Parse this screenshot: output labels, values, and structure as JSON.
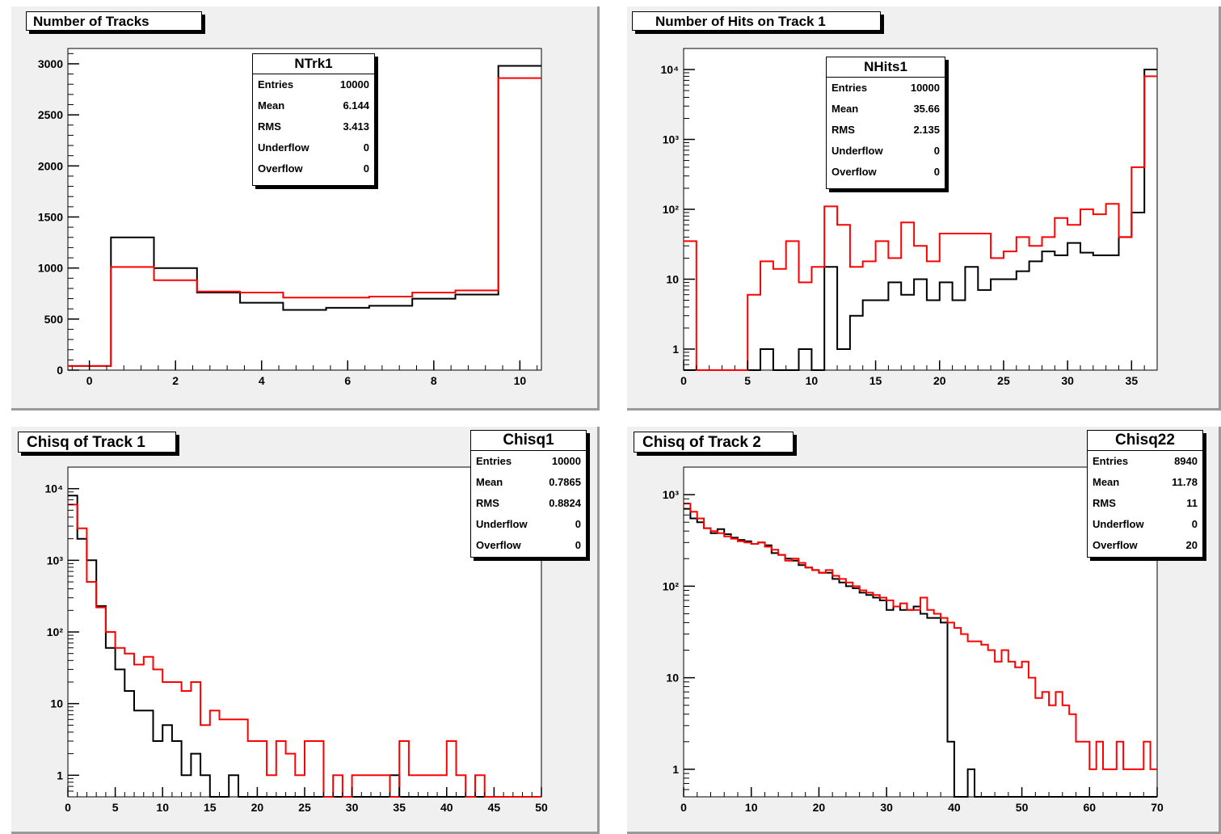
{
  "stat_labels": {
    "entries": "Entries",
    "mean": "Mean",
    "rms": "RMS",
    "underflow": "Underflow",
    "overflow": "Overflow"
  },
  "colors": {
    "reco": "#000000",
    "truth": "#ff0000",
    "pad": "#f0f0f0",
    "frame": "#ffffff"
  },
  "chart_data": [
    {
      "type": "histogram",
      "title": "Number of Tracks",
      "stats": {
        "name": "NTrk1",
        "entries": "10000",
        "mean": "6.144",
        "rms": "3.413",
        "underflow": "0",
        "overflow": "0"
      },
      "log_y": false,
      "xlim": [
        -0.5,
        10.5
      ],
      "ylim": [
        0,
        3150
      ],
      "x_ticks": [
        0,
        2,
        4,
        6,
        8,
        10
      ],
      "y_ticks": [
        0,
        500,
        1000,
        1500,
        2000,
        2500,
        3000
      ],
      "bin_edges": [
        -0.5,
        0.5,
        1.5,
        2.5,
        3.5,
        4.5,
        5.5,
        6.5,
        7.5,
        8.5,
        9.5,
        10.5
      ],
      "series": [
        {
          "color_key": "reco",
          "values": [
            40,
            1300,
            1000,
            760,
            660,
            590,
            610,
            630,
            700,
            740,
            2980
          ]
        },
        {
          "color_key": "truth",
          "values": [
            40,
            1010,
            880,
            770,
            760,
            710,
            710,
            720,
            760,
            780,
            2860
          ]
        }
      ]
    },
    {
      "type": "histogram",
      "title": "Number of Hits on Track 1",
      "stats": {
        "name": "NHits1",
        "entries": "10000",
        "mean": "35.66",
        "rms": "2.135",
        "underflow": "0",
        "overflow": "0"
      },
      "log_y": true,
      "xlim": [
        0,
        37
      ],
      "ylim": [
        0.5,
        20000
      ],
      "x_ticks": [
        0,
        5,
        10,
        15,
        20,
        25,
        30,
        35
      ],
      "y_ticks": [
        1,
        10,
        100,
        1000,
        10000
      ],
      "y_tick_labels": [
        "1",
        "10",
        "10²",
        "10³",
        "10⁴"
      ],
      "bin_start": 0,
      "bin_width": 1,
      "series": [
        {
          "color_key": "reco",
          "values": [
            0,
            0,
            0,
            0,
            0,
            0,
            1,
            0,
            0,
            1,
            0,
            15,
            1,
            3,
            5,
            5,
            9,
            6,
            10,
            5,
            9,
            5,
            15,
            7,
            10,
            10,
            13,
            18,
            25,
            22,
            33,
            24,
            22,
            22,
            40,
            90,
            10000
          ]
        },
        {
          "color_key": "truth",
          "values": [
            35,
            0,
            0,
            0,
            0,
            6,
            18,
            14,
            35,
            9,
            15,
            110,
            60,
            15,
            18,
            35,
            20,
            65,
            30,
            18,
            45,
            45,
            45,
            45,
            20,
            25,
            40,
            30,
            40,
            75,
            60,
            100,
            85,
            120,
            40,
            400,
            8000
          ]
        }
      ]
    },
    {
      "type": "histogram",
      "title": "Chisq of Track 1",
      "stats": {
        "name": "Chisq1",
        "entries": "10000",
        "mean": "0.7865",
        "rms": "0.8824",
        "underflow": "0",
        "overflow": "0"
      },
      "log_y": true,
      "xlim": [
        0,
        50
      ],
      "ylim": [
        0.5,
        20000
      ],
      "x_ticks": [
        0,
        5,
        10,
        15,
        20,
        25,
        30,
        35,
        40,
        45,
        50
      ],
      "y_ticks": [
        1,
        10,
        100,
        1000,
        10000
      ],
      "y_tick_labels": [
        "1",
        "10",
        "10²",
        "10³",
        "10⁴"
      ],
      "bin_start": 0,
      "bin_width": 1,
      "series": [
        {
          "color_key": "reco",
          "values": [
            8000,
            2000,
            1000,
            230,
            60,
            30,
            15,
            8,
            8,
            3,
            5,
            3,
            1,
            2,
            1,
            0,
            0,
            1,
            0,
            0,
            0,
            0,
            0,
            0,
            0,
            0,
            0,
            0,
            0,
            0,
            0,
            0,
            0,
            0,
            1,
            0,
            0,
            0,
            0,
            0,
            0,
            0,
            0,
            0,
            0,
            0,
            0,
            0,
            0,
            0
          ]
        },
        {
          "color_key": "truth",
          "values": [
            6000,
            2800,
            500,
            220,
            100,
            60,
            50,
            35,
            45,
            30,
            20,
            20,
            15,
            20,
            5,
            8,
            6,
            6,
            6,
            3,
            3,
            1,
            3,
            2,
            1,
            3,
            3,
            0,
            1,
            0,
            1,
            1,
            1,
            1,
            0,
            3,
            1,
            1,
            1,
            1,
            3,
            1,
            0,
            1,
            0,
            0,
            0,
            0,
            0,
            0
          ]
        }
      ]
    },
    {
      "type": "histogram",
      "title": "Chisq of Track 2",
      "stats": {
        "name": "Chisq22",
        "entries": "8940",
        "mean": "11.78",
        "rms": "11",
        "underflow": "0",
        "overflow": "20"
      },
      "log_y": true,
      "xlim": [
        0,
        70
      ],
      "ylim": [
        0.5,
        2000
      ],
      "x_ticks": [
        0,
        10,
        20,
        30,
        40,
        50,
        60,
        70
      ],
      "y_ticks": [
        1,
        10,
        100,
        1000
      ],
      "y_tick_labels": [
        "1",
        "10",
        "10²",
        "10³"
      ],
      "bin_start": 0,
      "bin_width": 1,
      "series": [
        {
          "color_key": "reco",
          "values": [
            700,
            550,
            500,
            430,
            380,
            420,
            370,
            340,
            320,
            310,
            290,
            300,
            280,
            230,
            220,
            200,
            190,
            170,
            160,
            150,
            140,
            140,
            120,
            110,
            100,
            95,
            85,
            80,
            75,
            70,
            55,
            60,
            55,
            55,
            60,
            50,
            45,
            45,
            40,
            2,
            0,
            0,
            1,
            0,
            0,
            0,
            0,
            0,
            0,
            0,
            0,
            0,
            0,
            0,
            0,
            0,
            0,
            0,
            0,
            0,
            0,
            0,
            0,
            0,
            0,
            0,
            0,
            0,
            0,
            0
          ]
        },
        {
          "color_key": "truth",
          "values": [
            800,
            650,
            550,
            430,
            400,
            380,
            350,
            330,
            310,
            300,
            290,
            300,
            270,
            250,
            220,
            190,
            200,
            180,
            160,
            150,
            140,
            150,
            130,
            120,
            110,
            100,
            90,
            85,
            80,
            75,
            70,
            60,
            65,
            55,
            55,
            75,
            55,
            50,
            45,
            40,
            35,
            30,
            25,
            25,
            23,
            20,
            15,
            20,
            15,
            13,
            15,
            10,
            6,
            7,
            5,
            7,
            5,
            4,
            2,
            2,
            1,
            2,
            1,
            1,
            2,
            1,
            1,
            1,
            2,
            1
          ]
        }
      ]
    }
  ]
}
